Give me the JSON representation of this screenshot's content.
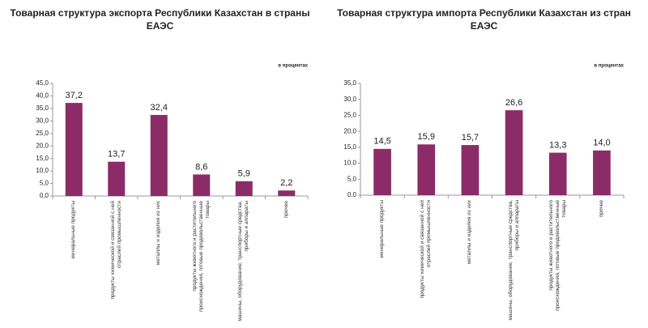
{
  "chart_data": [
    {
      "type": "bar",
      "title": "Товарная структура экспорта Республики Казахстан в страны ЕАЭС",
      "note": "в процентах",
      "categories": [
        "минеральные продукты",
        "продукты химической и связанной с ней отраслей промышленности",
        "металлы и изделия из них",
        "продукты животного и растительного происхождения, готовые продовольственные товары",
        "машины, оборудование, транспортные средства, приборы и аппараты",
        "прочее"
      ],
      "values": [
        37.2,
        13.7,
        32.4,
        8.6,
        5.9,
        2.2
      ],
      "value_labels": [
        "37,2",
        "13,7",
        "32,4",
        "8,6",
        "5,9",
        "2,2"
      ],
      "color": "#8b2c68",
      "ylim": [
        0,
        45
      ],
      "yticks": [
        {
          "value": 0,
          "label": "0,0"
        },
        {
          "value": 5,
          "label": "5,0"
        },
        {
          "value": 10,
          "label": "10,0"
        },
        {
          "value": 15,
          "label": "15,0"
        },
        {
          "value": 20,
          "label": "20,0"
        },
        {
          "value": 25,
          "label": "25,0"
        },
        {
          "value": 30,
          "label": "30,0"
        },
        {
          "value": 35,
          "label": "35,0"
        },
        {
          "value": 40,
          "label": "40,0"
        },
        {
          "value": 45,
          "label": "45,0"
        }
      ],
      "grid": false
    },
    {
      "type": "bar",
      "title": "Товарная структура импорта Республики Казахстан из стран ЕАЭС",
      "note": "в процентах",
      "categories": [
        "минеральные продукты",
        "продукты химической и связанной с ней отраслей промышленности",
        "металлы и изделия из них",
        "машины, оборудование, транспортные средства, приборы и аппараты",
        "продукты животного и растительного происхождения, готовые продовольственные товары",
        "прочее"
      ],
      "values": [
        14.5,
        15.9,
        15.7,
        26.6,
        13.3,
        14.0
      ],
      "value_labels": [
        "14,5",
        "15,9",
        "15,7",
        "26,6",
        "13,3",
        "14,0"
      ],
      "color": "#8b2c68",
      "ylim": [
        0,
        35
      ],
      "yticks": [
        {
          "value": 0,
          "label": "0,0"
        },
        {
          "value": 5,
          "label": "5,0"
        },
        {
          "value": 10,
          "label": "10,0"
        },
        {
          "value": 15,
          "label": "15,0"
        },
        {
          "value": 20,
          "label": "20,0"
        },
        {
          "value": 25,
          "label": "25,0"
        },
        {
          "value": 30,
          "label": "30,0"
        },
        {
          "value": 35,
          "label": "35,0"
        }
      ],
      "grid": false
    }
  ]
}
